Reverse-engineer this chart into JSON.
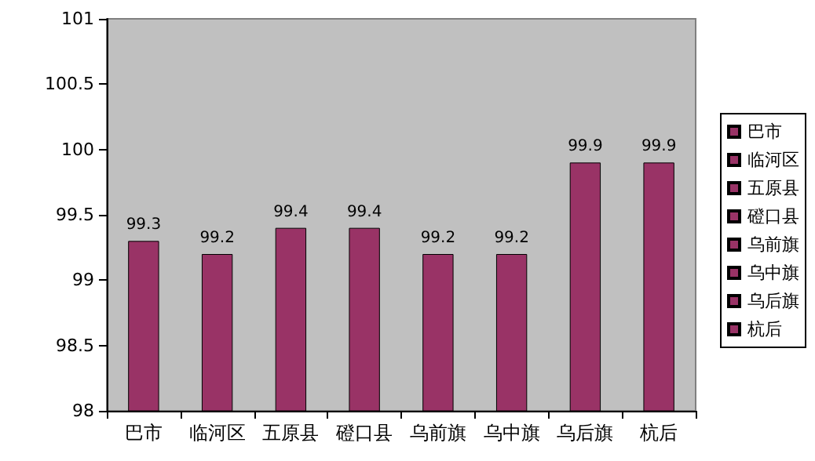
{
  "chart_data": {
    "type": "bar",
    "categories": [
      "巴市",
      "临河区",
      "五原县",
      "磴口县",
      "乌前旗",
      "乌中旗",
      "乌后旗",
      "杭后"
    ],
    "series": [
      {
        "name": "巴市",
        "color": "#993366",
        "values": [
          99.3,
          null,
          null,
          null,
          null,
          null,
          null,
          null
        ]
      },
      {
        "name": "临河区",
        "color": "#993366",
        "values": [
          null,
          99.2,
          null,
          null,
          null,
          null,
          null,
          null
        ]
      },
      {
        "name": "五原县",
        "color": "#993366",
        "values": [
          null,
          null,
          99.4,
          null,
          null,
          null,
          null,
          null
        ]
      },
      {
        "name": "磴口县",
        "color": "#993366",
        "values": [
          null,
          null,
          null,
          99.4,
          null,
          null,
          null,
          null
        ]
      },
      {
        "name": "乌前旗",
        "color": "#993366",
        "values": [
          null,
          null,
          null,
          null,
          99.2,
          null,
          null,
          null
        ]
      },
      {
        "name": "乌中旗",
        "color": "#993366",
        "values": [
          null,
          null,
          null,
          null,
          null,
          99.2,
          null,
          null
        ]
      },
      {
        "name": "乌后旗",
        "color": "#993366",
        "values": [
          null,
          null,
          null,
          null,
          null,
          null,
          99.9,
          null
        ]
      },
      {
        "name": "杭后",
        "color": "#993366",
        "values": [
          null,
          null,
          null,
          null,
          null,
          null,
          null,
          99.9
        ]
      }
    ],
    "ylim": [
      98,
      101
    ],
    "yticks": [
      98,
      98.5,
      99,
      99.5,
      100,
      100.5,
      101
    ],
    "data_labels": true,
    "legend": "right",
    "grid": false
  }
}
